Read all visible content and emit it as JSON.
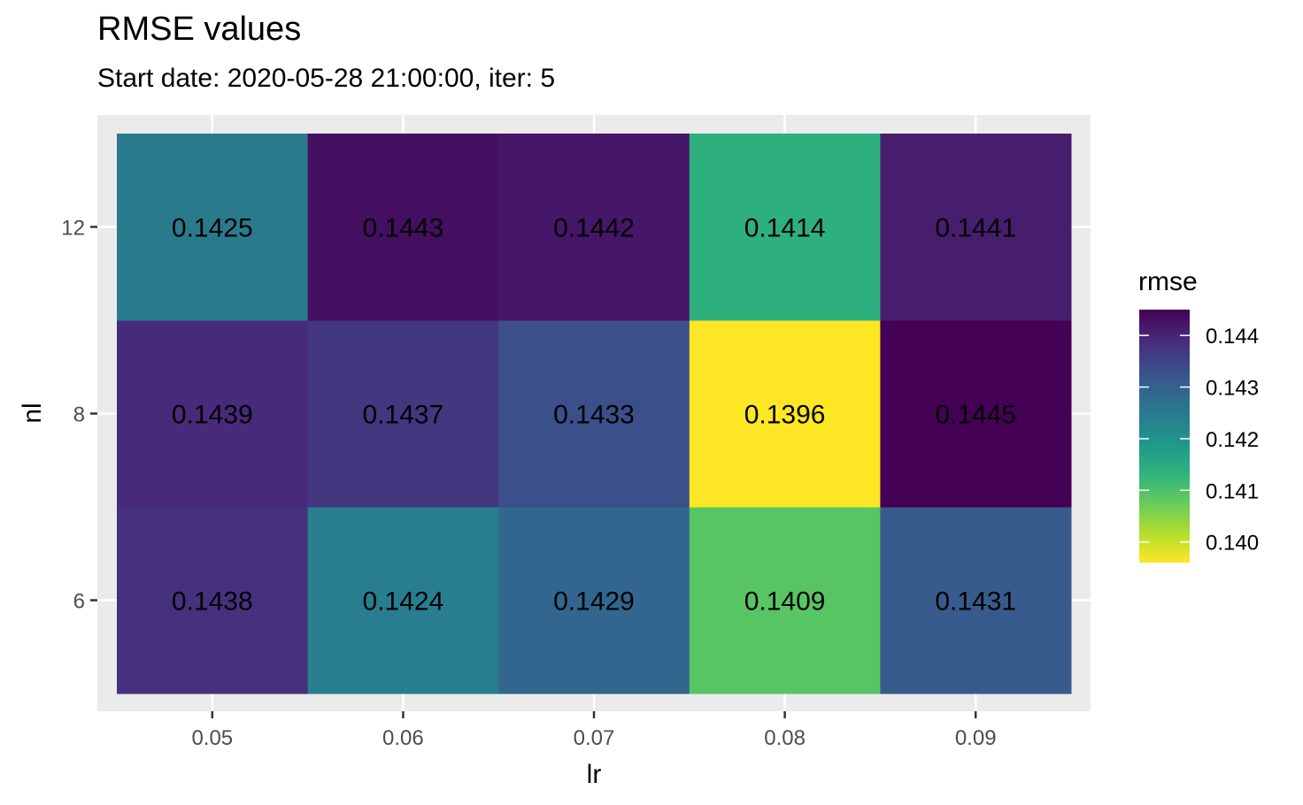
{
  "chart_data": {
    "type": "heatmap",
    "title": "RMSE values",
    "subtitle": "Start date: 2020-05-28 21:00:00, iter: 5",
    "xlabel": "lr",
    "ylabel": "nl",
    "x": [
      "0.05",
      "0.06",
      "0.07",
      "0.08",
      "0.09"
    ],
    "y": [
      "6",
      "8",
      "12"
    ],
    "values": [
      [
        0.1438,
        0.1424,
        0.1429,
        0.1409,
        0.1431
      ],
      [
        0.1439,
        0.1437,
        0.1433,
        0.1396,
        0.1445
      ],
      [
        0.1425,
        0.1443,
        0.1442,
        0.1414,
        0.1441
      ]
    ],
    "cell_labels": [
      [
        "0.1438",
        "0.1424",
        "0.1429",
        "0.1409",
        "0.1431"
      ],
      [
        "0.1439",
        "0.1437",
        "0.1433",
        "0.1396",
        "0.1445"
      ],
      [
        "0.1425",
        "0.1443",
        "0.1442",
        "0.1414",
        "0.1441"
      ]
    ],
    "legend": {
      "title": "rmse",
      "placement": "right",
      "ticks": [
        "0.140",
        "0.141",
        "0.142",
        "0.143",
        "0.144"
      ],
      "tick_values": [
        0.14,
        0.141,
        0.142,
        0.143,
        0.144
      ],
      "range": [
        0.1396,
        0.1445
      ],
      "colormap": "viridis-reversed"
    },
    "grid": true,
    "colors": {
      "panel_bg": "#ebebeb",
      "grid": "#ffffff",
      "viridis": [
        "#440154",
        "#482878",
        "#3e4989",
        "#31688e",
        "#26828e",
        "#1f9e89",
        "#35b779",
        "#6ece58",
        "#b5de2b",
        "#fde725"
      ]
    }
  }
}
